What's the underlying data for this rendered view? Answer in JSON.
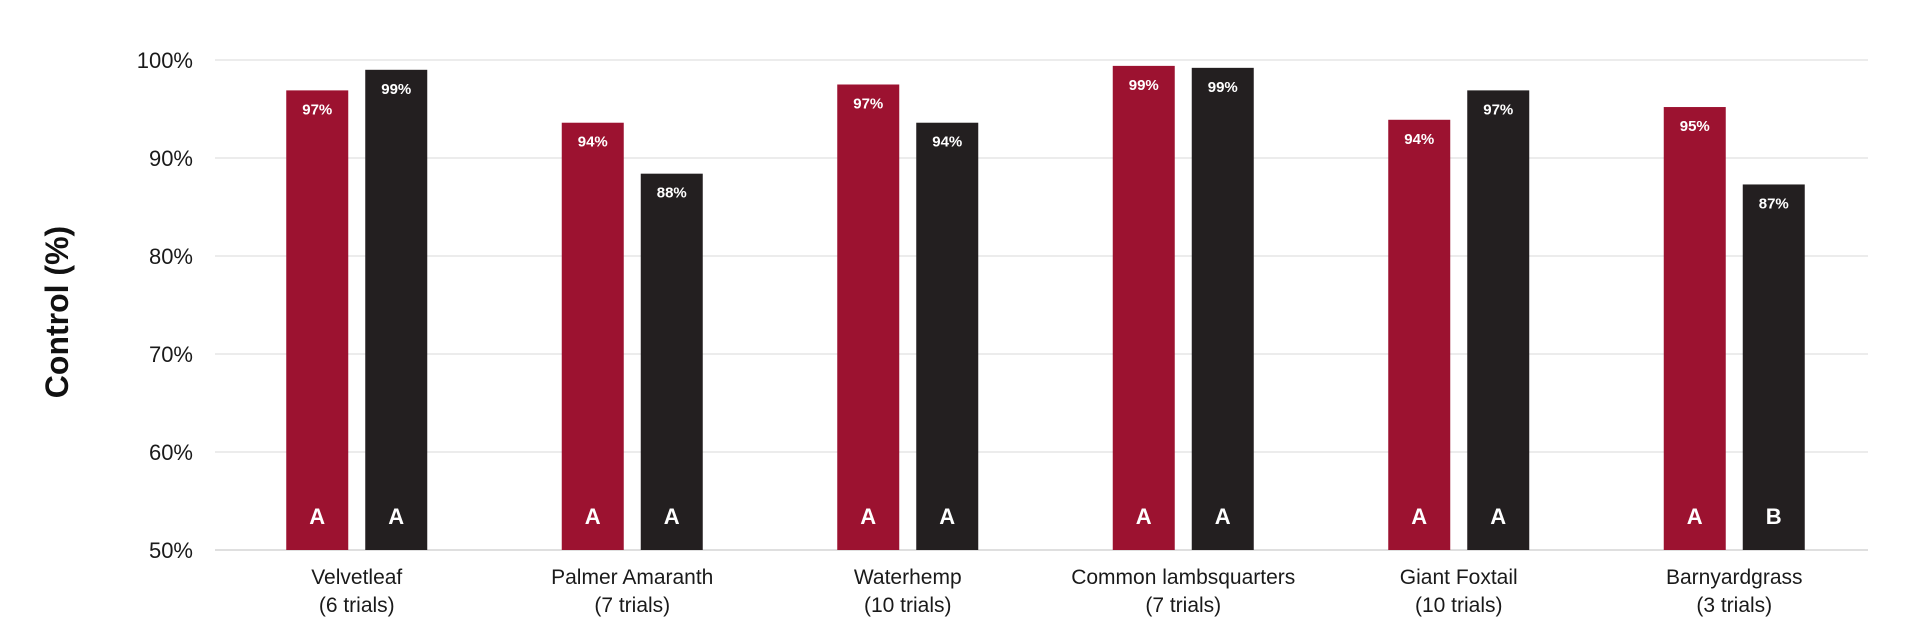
{
  "chart_data": {
    "type": "bar",
    "title": "",
    "xlabel": "",
    "ylabel": "Control (%)",
    "ylim": [
      50,
      100
    ],
    "yticks": [
      50,
      60,
      70,
      80,
      90,
      100
    ],
    "ytick_labels": [
      "50%",
      "60%",
      "70%",
      "80%",
      "90%",
      "100%"
    ],
    "grid": true,
    "legend": "none",
    "categories": [
      [
        "Velvetleaf",
        "(6 trials)"
      ],
      [
        "Palmer Amaranth",
        "(7 trials)"
      ],
      [
        "Waterhemp",
        "(10 trials)"
      ],
      [
        "Common lambsquarters",
        "(7 trials)"
      ],
      [
        "Giant Foxtail",
        "(10 trials)"
      ],
      [
        "Barnyardgrass",
        "(3 trials)"
      ]
    ],
    "series": [
      {
        "color": "#9c1230",
        "values": [
          96.9,
          93.6,
          97.5,
          99.4,
          93.9,
          95.2
        ],
        "value_labels": [
          "97%",
          "94%",
          "97%",
          "99%",
          "94%",
          "95%"
        ],
        "letters": [
          "A",
          "A",
          "A",
          "A",
          "A",
          "A"
        ]
      },
      {
        "color": "#231f20",
        "values": [
          99.0,
          88.4,
          93.6,
          99.2,
          96.9,
          87.3
        ],
        "value_labels": [
          "99%",
          "88%",
          "94%",
          "99%",
          "97%",
          "87%"
        ],
        "letters": [
          "A",
          "A",
          "A",
          "A",
          "A",
          "B"
        ]
      }
    ]
  }
}
